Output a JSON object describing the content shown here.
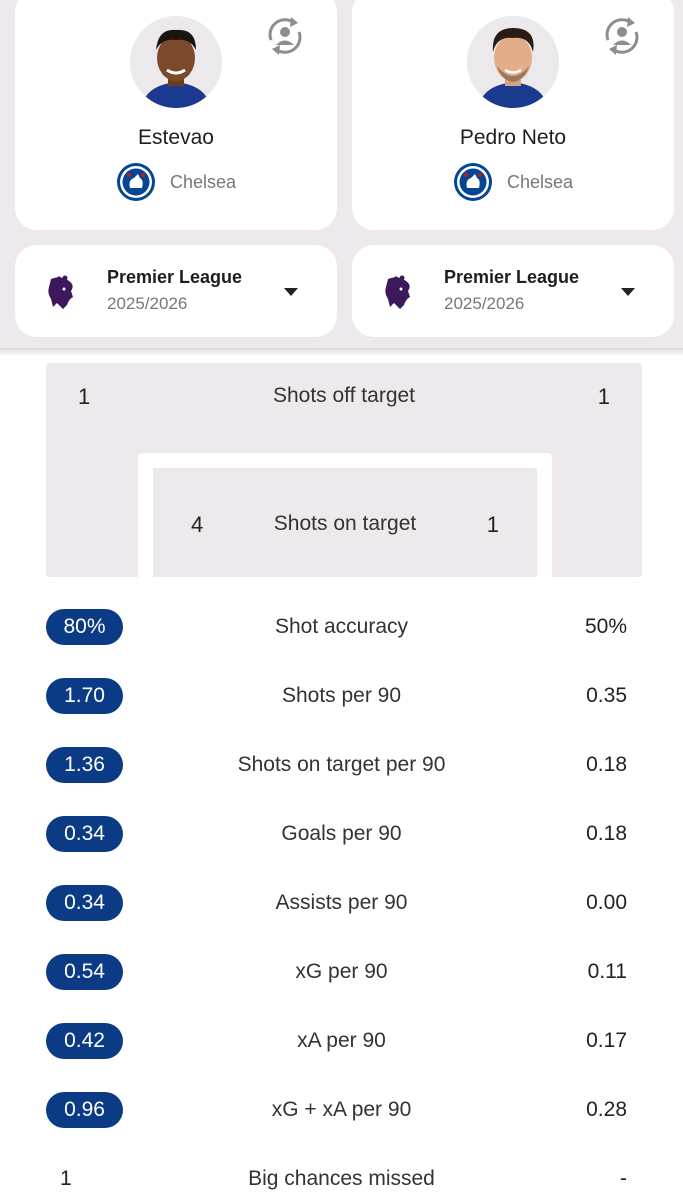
{
  "players": [
    {
      "name": "Estevao",
      "club": "Chelsea",
      "league": "Premier League",
      "season": "2025/2026"
    },
    {
      "name": "Pedro Neto",
      "club": "Chelsea",
      "league": "Premier League",
      "season": "2025/2026"
    }
  ],
  "shots_graphic": {
    "off_target": {
      "label": "Shots off target",
      "left": "1",
      "right": "1"
    },
    "on_target": {
      "label": "Shots on target",
      "left": "4",
      "right": "1"
    }
  },
  "stats": [
    {
      "label": "Shot accuracy",
      "left": "80%",
      "right": "50%",
      "left_highlight": true
    },
    {
      "label": "Shots per 90",
      "left": "1.70",
      "right": "0.35",
      "left_highlight": true
    },
    {
      "label": "Shots on target per 90",
      "left": "1.36",
      "right": "0.18",
      "left_highlight": true
    },
    {
      "label": "Goals per 90",
      "left": "0.34",
      "right": "0.18",
      "left_highlight": true
    },
    {
      "label": "Assists per 90",
      "left": "0.34",
      "right": "0.00",
      "left_highlight": true
    },
    {
      "label": "xG per 90",
      "left": "0.54",
      "right": "0.11",
      "left_highlight": true
    },
    {
      "label": "xA per 90",
      "left": "0.42",
      "right": "0.17",
      "left_highlight": true
    },
    {
      "label": "xG + xA per 90",
      "left": "0.96",
      "right": "0.28",
      "left_highlight": true
    },
    {
      "label": "Big chances missed",
      "left": "1",
      "right": "-",
      "left_highlight": false
    }
  ],
  "colors": {
    "highlight": "#0b3b84",
    "background_grey": "#ede9ec",
    "league_purple": "#3d195b"
  },
  "icons": {
    "swap": "swap-player-icon",
    "club": "chelsea-crest-icon",
    "league": "premier-league-lion-icon",
    "dropdown": "caret-down-icon"
  }
}
